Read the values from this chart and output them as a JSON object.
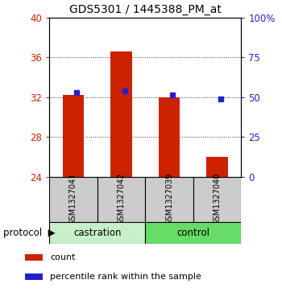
{
  "title": "GDS5301 / 1445388_PM_at",
  "samples": [
    "GSM1327041",
    "GSM1327042",
    "GSM1327039",
    "GSM1327040"
  ],
  "red_bar_values": [
    32.2,
    36.6,
    32.0,
    26.0
  ],
  "blue_marker_values": [
    32.5,
    32.6,
    32.25,
    31.85
  ],
  "ylim_left": [
    24,
    40
  ],
  "ylim_right": [
    0,
    100
  ],
  "yticks_left": [
    24,
    28,
    32,
    36,
    40
  ],
  "yticks_right": [
    0,
    25,
    50,
    75,
    100
  ],
  "ytick_labels_right": [
    "0",
    "25",
    "50",
    "75",
    "100%"
  ],
  "bar_bottom": 24,
  "bar_width": 0.45,
  "red_color": "#cc2200",
  "blue_color": "#2222cc",
  "legend_count": "count",
  "legend_percentile": "percentile rank within the sample",
  "castration_color": "#c8f0c8",
  "control_color": "#66dd66",
  "sample_box_color": "#cccccc"
}
